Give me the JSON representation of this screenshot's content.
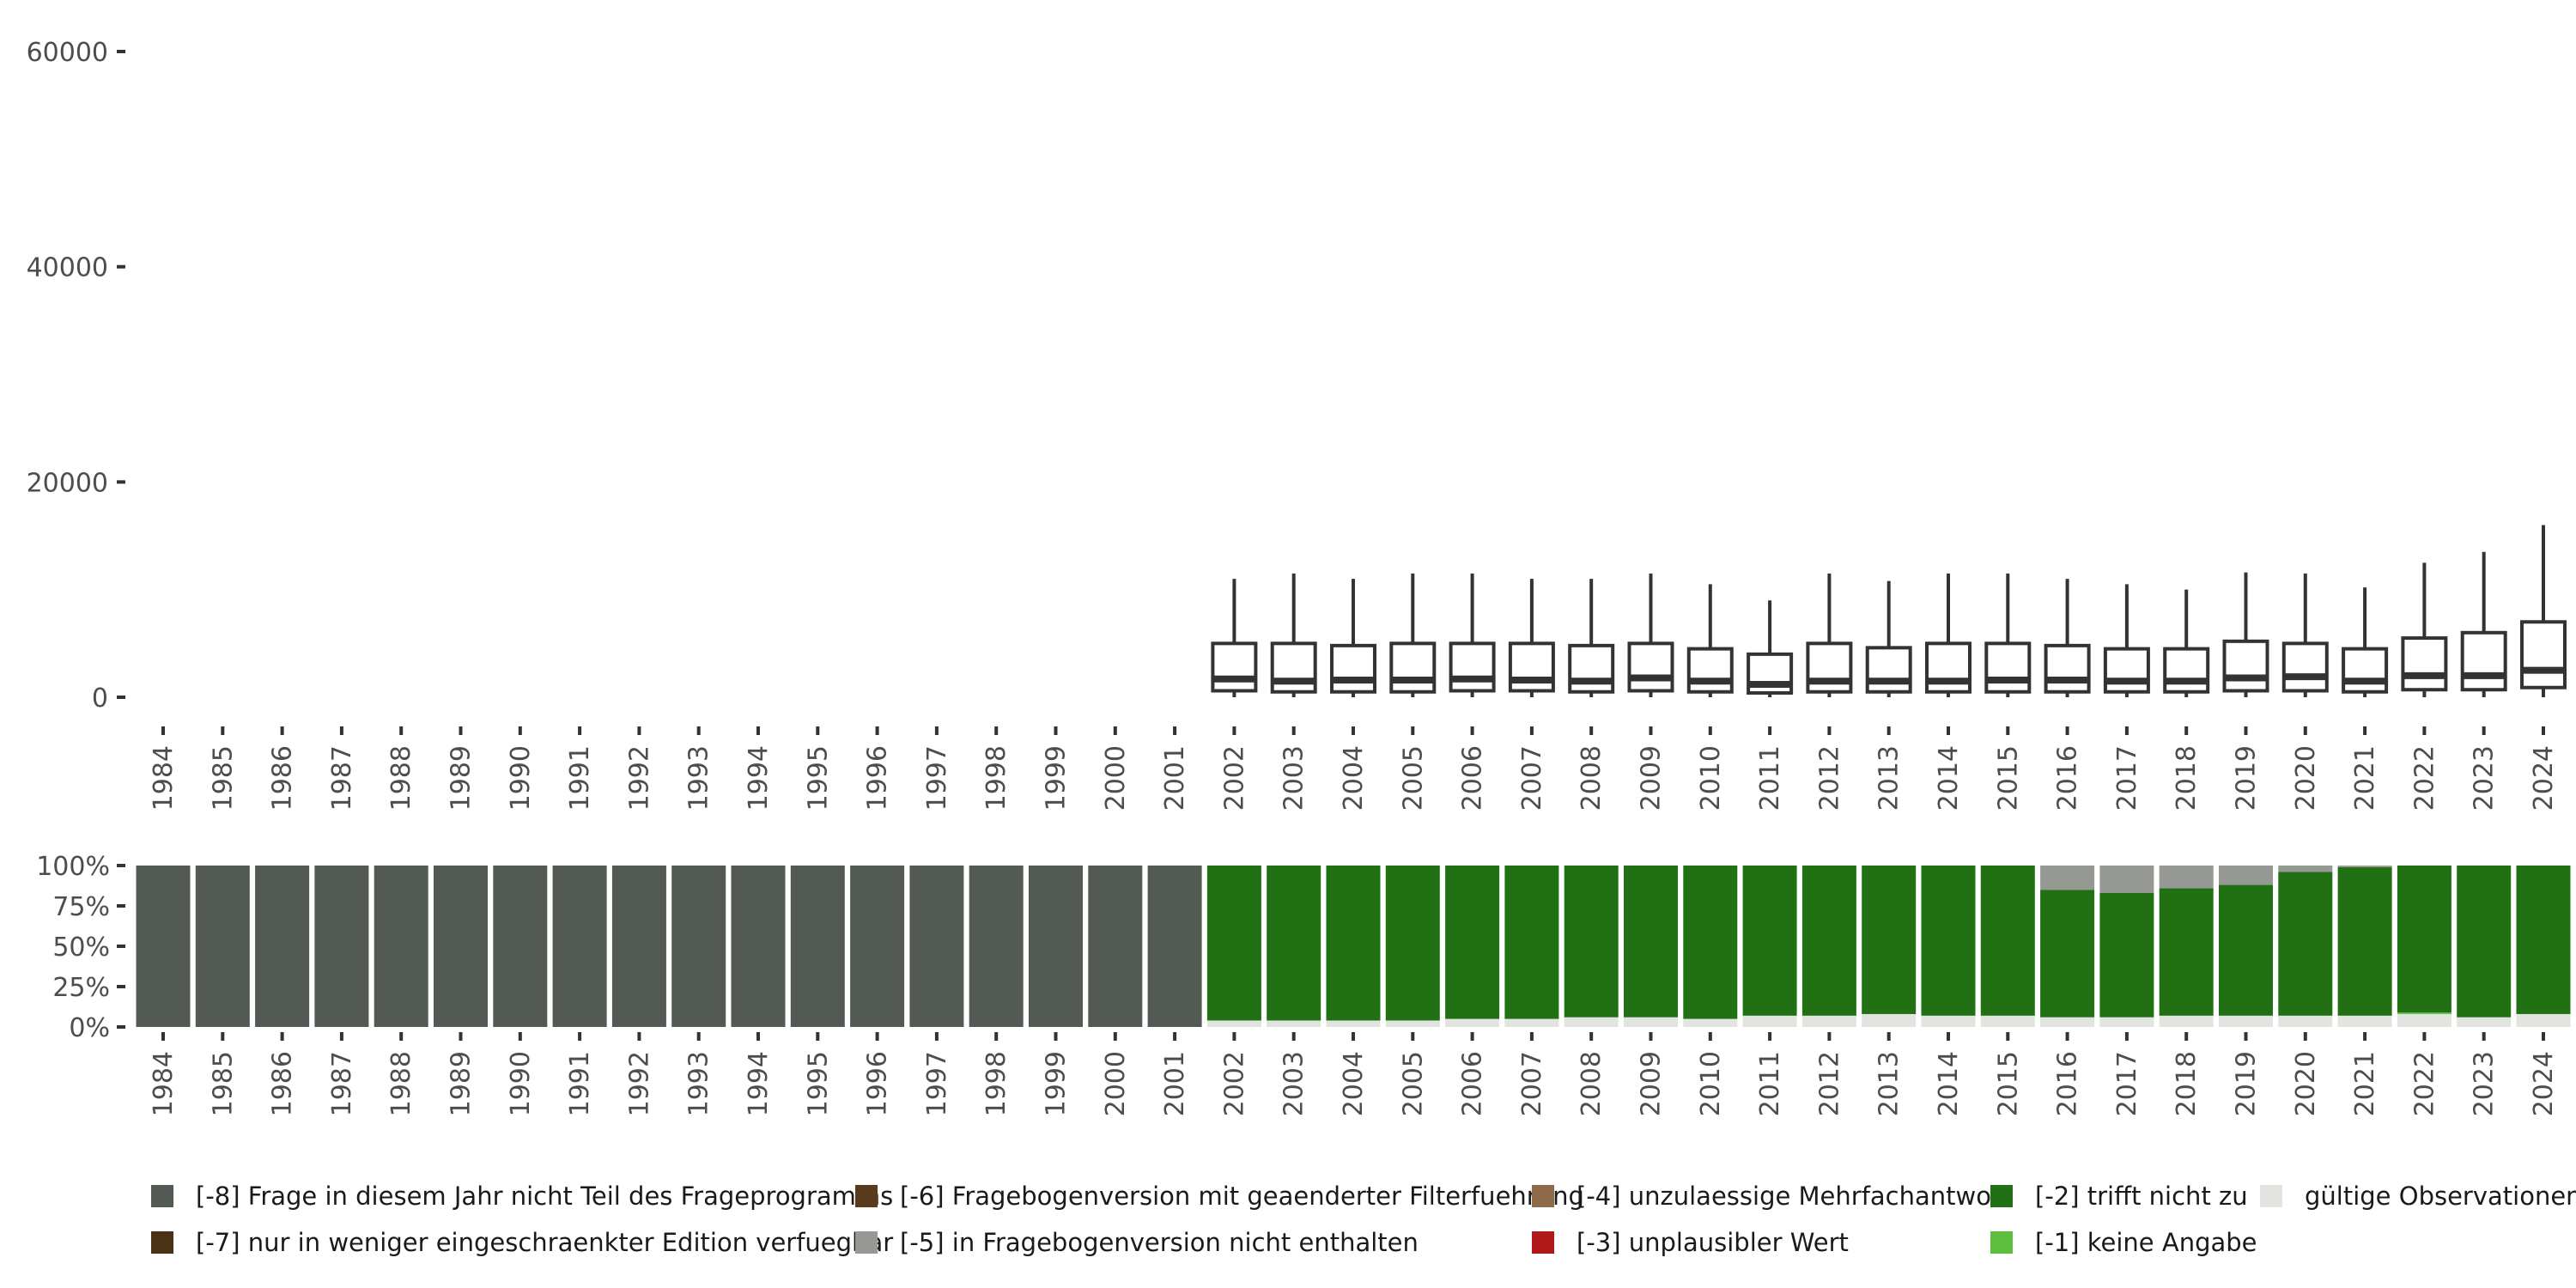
{
  "chart_data": [
    {
      "type": "boxplot",
      "title": "",
      "xlabel": "",
      "ylabel": "",
      "ylim": [
        0,
        60000
      ],
      "yticks": [
        {
          "value": 0,
          "label": "0"
        },
        {
          "value": 20000,
          "label": "20000"
        },
        {
          "value": 40000,
          "label": "40000"
        },
        {
          "value": 60000,
          "label": "60000"
        }
      ],
      "categories": [
        "1984",
        "1985",
        "1986",
        "1987",
        "1988",
        "1989",
        "1990",
        "1991",
        "1992",
        "1993",
        "1994",
        "1995",
        "1996",
        "1997",
        "1998",
        "1999",
        "2000",
        "2001",
        "2002",
        "2003",
        "2004",
        "2005",
        "2006",
        "2007",
        "2008",
        "2009",
        "2010",
        "2011",
        "2012",
        "2013",
        "2014",
        "2015",
        "2016",
        "2017",
        "2018",
        "2019",
        "2020",
        "2021",
        "2022",
        "2023",
        "2024"
      ],
      "boxes": [
        {
          "year": "2002",
          "min": 0,
          "q1": 600,
          "median": 1700,
          "q3": 5000,
          "max": 11000
        },
        {
          "year": "2003",
          "min": 0,
          "q1": 500,
          "median": 1500,
          "q3": 5000,
          "max": 11500
        },
        {
          "year": "2004",
          "min": 0,
          "q1": 500,
          "median": 1600,
          "q3": 4800,
          "max": 11000
        },
        {
          "year": "2005",
          "min": 0,
          "q1": 500,
          "median": 1600,
          "q3": 5000,
          "max": 11500
        },
        {
          "year": "2006",
          "min": 0,
          "q1": 600,
          "median": 1700,
          "q3": 5000,
          "max": 11500
        },
        {
          "year": "2007",
          "min": 0,
          "q1": 600,
          "median": 1600,
          "q3": 5000,
          "max": 11000
        },
        {
          "year": "2008",
          "min": 0,
          "q1": 500,
          "median": 1500,
          "q3": 4800,
          "max": 11000
        },
        {
          "year": "2009",
          "min": 0,
          "q1": 600,
          "median": 1800,
          "q3": 5000,
          "max": 11500
        },
        {
          "year": "2010",
          "min": 0,
          "q1": 500,
          "median": 1500,
          "q3": 4500,
          "max": 10500
        },
        {
          "year": "2011",
          "min": 0,
          "q1": 400,
          "median": 1200,
          "q3": 4000,
          "max": 9000
        },
        {
          "year": "2012",
          "min": 0,
          "q1": 500,
          "median": 1500,
          "q3": 5000,
          "max": 11500
        },
        {
          "year": "2013",
          "min": 0,
          "q1": 500,
          "median": 1500,
          "q3": 4600,
          "max": 10800
        },
        {
          "year": "2014",
          "min": 0,
          "q1": 500,
          "median": 1500,
          "q3": 5000,
          "max": 11500
        },
        {
          "year": "2015",
          "min": 0,
          "q1": 500,
          "median": 1600,
          "q3": 5000,
          "max": 11500
        },
        {
          "year": "2016",
          "min": 0,
          "q1": 500,
          "median": 1600,
          "q3": 4800,
          "max": 11000
        },
        {
          "year": "2017",
          "min": 0,
          "q1": 500,
          "median": 1500,
          "q3": 4500,
          "max": 10500
        },
        {
          "year": "2018",
          "min": 0,
          "q1": 500,
          "median": 1500,
          "q3": 4500,
          "max": 10000
        },
        {
          "year": "2019",
          "min": 0,
          "q1": 600,
          "median": 1800,
          "q3": 5200,
          "max": 11600
        },
        {
          "year": "2020",
          "min": 0,
          "q1": 600,
          "median": 1900,
          "q3": 5000,
          "max": 11500
        },
        {
          "year": "2021",
          "min": 0,
          "q1": 500,
          "median": 1500,
          "q3": 4500,
          "max": 10200
        },
        {
          "year": "2022",
          "min": 0,
          "q1": 700,
          "median": 2000,
          "q3": 5500,
          "max": 12500
        },
        {
          "year": "2023",
          "min": 0,
          "q1": 700,
          "median": 2000,
          "q3": 6000,
          "max": 13500
        },
        {
          "year": "2024",
          "min": 0,
          "q1": 900,
          "median": 2500,
          "q3": 7000,
          "max": 16000
        }
      ]
    },
    {
      "type": "stacked-bar",
      "title": "",
      "xlabel": "",
      "ylabel": "",
      "ylim": [
        0,
        100
      ],
      "yticks": [
        {
          "value": 0,
          "label": "0%"
        },
        {
          "value": 25,
          "label": "25%"
        },
        {
          "value": 50,
          "label": "50%"
        },
        {
          "value": 75,
          "label": "75%"
        },
        {
          "value": 100,
          "label": "100%"
        }
      ],
      "categories": [
        "1984",
        "1985",
        "1986",
        "1987",
        "1988",
        "1989",
        "1990",
        "1991",
        "1992",
        "1993",
        "1994",
        "1995",
        "1996",
        "1997",
        "1998",
        "1999",
        "2000",
        "2001",
        "2002",
        "2003",
        "2004",
        "2005",
        "2006",
        "2007",
        "2008",
        "2009",
        "2010",
        "2011",
        "2012",
        "2013",
        "2014",
        "2015",
        "2016",
        "2017",
        "2018",
        "2019",
        "2020",
        "2021",
        "2022",
        "2023",
        "2024"
      ],
      "series": [
        {
          "key": "valid",
          "name": "gültige Observationen",
          "color": "#e2e4df",
          "values": [
            0,
            0,
            0,
            0,
            0,
            0,
            0,
            0,
            0,
            0,
            0,
            0,
            0,
            0,
            0,
            0,
            0,
            0,
            4,
            4,
            4,
            4,
            5,
            5,
            6,
            6,
            5,
            7,
            7,
            8,
            7,
            7,
            6,
            6,
            7,
            7,
            7,
            7,
            8,
            6,
            8
          ]
        },
        {
          "key": "m1",
          "name": "[-1] keine Angabe",
          "color": "#5dbd3e",
          "values": [
            0,
            0,
            0,
            0,
            0,
            0,
            0,
            0,
            0,
            0,
            0,
            0,
            0,
            0,
            0,
            0,
            0,
            0,
            0,
            0,
            0,
            0,
            0,
            0,
            0,
            0,
            0,
            0,
            0,
            0,
            0,
            0,
            0,
            0,
            0,
            0,
            0,
            0,
            1,
            0,
            0
          ]
        },
        {
          "key": "m2",
          "name": "[-2] trifft nicht zu",
          "color": "#217014",
          "values": [
            0,
            0,
            0,
            0,
            0,
            0,
            0,
            0,
            0,
            0,
            0,
            0,
            0,
            0,
            0,
            0,
            0,
            0,
            96,
            96,
            96,
            96,
            95,
            95,
            94,
            94,
            95,
            93,
            93,
            92,
            93,
            93,
            79,
            77,
            79,
            81,
            89,
            92,
            91,
            94,
            92
          ]
        },
        {
          "key": "m3",
          "name": "[-3] unplausibler Wert",
          "color": "#b0191a",
          "values": [
            0,
            0,
            0,
            0,
            0,
            0,
            0,
            0,
            0,
            0,
            0,
            0,
            0,
            0,
            0,
            0,
            0,
            0,
            0,
            0,
            0,
            0,
            0,
            0,
            0,
            0,
            0,
            0,
            0,
            0,
            0,
            0,
            0,
            0,
            0,
            0,
            0,
            0,
            0,
            0,
            0
          ]
        },
        {
          "key": "m4",
          "name": "[-4] unzulaessige Mehrfachantwort",
          "color": "#8c6a4a",
          "values": [
            0,
            0,
            0,
            0,
            0,
            0,
            0,
            0,
            0,
            0,
            0,
            0,
            0,
            0,
            0,
            0,
            0,
            0,
            0,
            0,
            0,
            0,
            0,
            0,
            0,
            0,
            0,
            0,
            0,
            0,
            0,
            0,
            0,
            0,
            0,
            0,
            0,
            0,
            0,
            0,
            0
          ]
        },
        {
          "key": "m5",
          "name": "[-5] in Fragebogenversion nicht enthalten",
          "color": "#969893",
          "values": [
            0,
            0,
            0,
            0,
            0,
            0,
            0,
            0,
            0,
            0,
            0,
            0,
            0,
            0,
            0,
            0,
            0,
            0,
            0,
            0,
            0,
            0,
            0,
            0,
            0,
            0,
            0,
            0,
            0,
            0,
            0,
            0,
            15,
            17,
            14,
            12,
            4,
            1,
            0,
            0,
            0
          ]
        },
        {
          "key": "m6",
          "name": "[-6] Fragebogenversion mit geaenderter Filterfuehrung",
          "color": "#5a3a1c",
          "values": [
            0,
            0,
            0,
            0,
            0,
            0,
            0,
            0,
            0,
            0,
            0,
            0,
            0,
            0,
            0,
            0,
            0,
            0,
            0,
            0,
            0,
            0,
            0,
            0,
            0,
            0,
            0,
            0,
            0,
            0,
            0,
            0,
            0,
            0,
            0,
            0,
            0,
            0,
            0,
            0,
            0
          ]
        },
        {
          "key": "m7",
          "name": "[-7] nur in weniger eingeschraenkter Edition verfuegbar",
          "color": "#4a3216",
          "values": [
            0,
            0,
            0,
            0,
            0,
            0,
            0,
            0,
            0,
            0,
            0,
            0,
            0,
            0,
            0,
            0,
            0,
            0,
            0,
            0,
            0,
            0,
            0,
            0,
            0,
            0,
            0,
            0,
            0,
            0,
            0,
            0,
            0,
            0,
            0,
            0,
            0,
            0,
            0,
            0,
            0
          ]
        },
        {
          "key": "m8",
          "name": "[-8] Frage in diesem Jahr nicht Teil des Frageprogramms",
          "color": "#535a54",
          "values": [
            100,
            100,
            100,
            100,
            100,
            100,
            100,
            100,
            100,
            100,
            100,
            100,
            100,
            100,
            100,
            100,
            100,
            100,
            0,
            0,
            0,
            0,
            0,
            0,
            0,
            0,
            0,
            0,
            0,
            0,
            0,
            0,
            0,
            0,
            0,
            0,
            0,
            0,
            0,
            0,
            0
          ]
        }
      ]
    }
  ],
  "legend": {
    "placement": "bottom",
    "rows": [
      [
        {
          "label": "[-8] Frage in diesem Jahr nicht Teil des Frageprogramms",
          "color": "#535a54"
        },
        {
          "label": "[-6] Fragebogenversion mit geaenderter Filterfuehrung",
          "color": "#5a3a1c"
        },
        {
          "label": "[-4] unzulaessige Mehrfachantwort",
          "color": "#8c6a4a"
        },
        {
          "label": "[-2] trifft nicht zu",
          "color": "#217014"
        },
        {
          "label": "gültige Observationen",
          "color": "#e2e4df"
        }
      ],
      [
        {
          "label": "[-7] nur in weniger eingeschraenkter Edition verfuegbar",
          "color": "#4a3216"
        },
        {
          "label": "[-5] in Fragebogenversion nicht enthalten",
          "color": "#969893"
        },
        {
          "label": "[-3] unplausibler Wert",
          "color": "#b0191a"
        },
        {
          "label": "[-1] keine Angabe",
          "color": "#5dbd3e"
        }
      ]
    ]
  },
  "colors": {
    "axis_text": "#4d4d4d",
    "tick": "#333333",
    "box_stroke": "#333333"
  }
}
